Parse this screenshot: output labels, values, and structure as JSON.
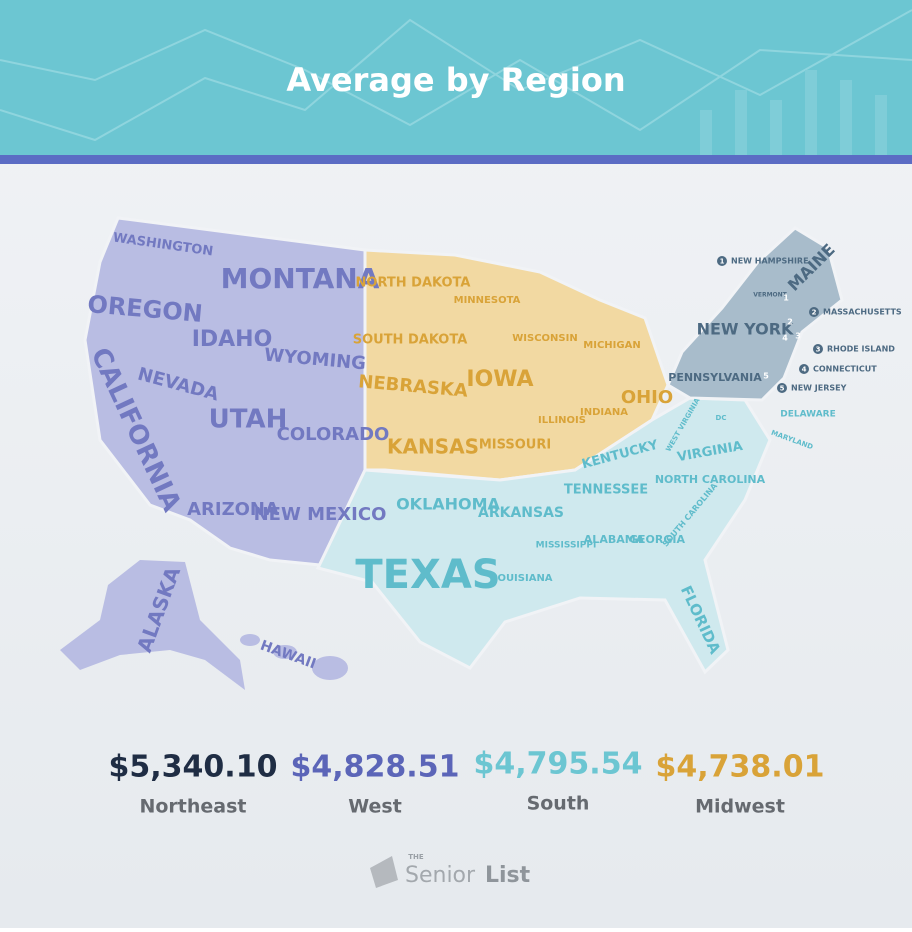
{
  "header": {
    "title": "Average by Region"
  },
  "map": {
    "west": [
      "WASHINGTON",
      "OREGON",
      "CALIFORNIA",
      "NEVADA",
      "IDAHO",
      "MONTANA",
      "WYOMING",
      "UTAH",
      "COLORADO",
      "ARIZONA",
      "NEW MEXICO",
      "ALASKA",
      "HAWAII"
    ],
    "midwest": [
      "NORTH DAKOTA",
      "SOUTH DAKOTA",
      "NEBRASKA",
      "KANSAS",
      "MINNESOTA",
      "IOWA",
      "MISSOURI",
      "WISCONSIN",
      "ILLINOIS",
      "MICHIGAN",
      "INDIANA",
      "OHIO"
    ],
    "south": [
      "OKLAHOMA",
      "TEXAS",
      "ARKANSAS",
      "LOUISIANA",
      "MISSISSIPPI",
      "ALABAMA",
      "GEORGIA",
      "FLORIDA",
      "TENNESSEE",
      "KENTUCKY",
      "WEST VIRGINIA",
      "VIRGINIA",
      "NORTH CAROLINA",
      "SOUTH CAROLINA",
      "DC",
      "DELAWARE",
      "MARYLAND"
    ],
    "northeast": [
      "MAINE",
      "NEW YORK",
      "PENNSYLVANIA",
      "VERMONT"
    ],
    "legend": [
      {
        "num": "1",
        "name": "NEW HAMPSHIRE"
      },
      {
        "num": "2",
        "name": "MASSACHUSETTS"
      },
      {
        "num": "3",
        "name": "RHODE ISLAND"
      },
      {
        "num": "4",
        "name": "CONNECTICUT"
      },
      {
        "num": "5",
        "name": "NEW JERSEY"
      }
    ]
  },
  "regions": [
    {
      "value": "$5,340.10",
      "name": "Northeast"
    },
    {
      "value": "$4,828.51",
      "name": "West"
    },
    {
      "value": "$4,795.54",
      "name": "South"
    },
    {
      "value": "$4,738.01",
      "name": "Midwest"
    }
  ],
  "logo": {
    "small": "THE",
    "first": "Senior",
    "second": "List"
  }
}
